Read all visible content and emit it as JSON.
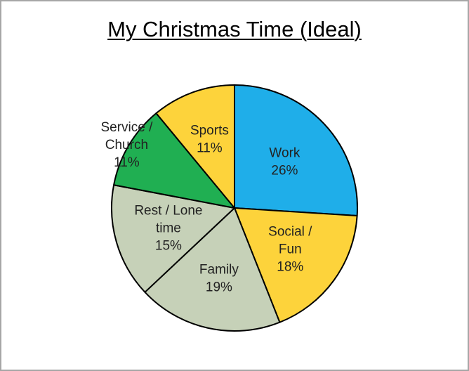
{
  "chart_data": {
    "type": "pie",
    "title": "My Christmas Time (Ideal)",
    "categories": [
      "Work",
      "Social / Fun",
      "Family",
      "Rest / Lone time",
      "Service / Church",
      "Sports"
    ],
    "values": [
      26,
      18,
      19,
      15,
      11,
      11
    ],
    "percent_labels": [
      "26%",
      "18%",
      "19%",
      "15%",
      "11%",
      "11%"
    ],
    "label_lines": [
      [
        "Work",
        "26%"
      ],
      [
        "Social /",
        "Fun",
        "18%"
      ],
      [
        "Family",
        "19%"
      ],
      [
        "Rest / Lone",
        "time",
        "15%"
      ],
      [
        "Service /",
        "Church",
        "11%"
      ],
      [
        "Sports",
        "11%"
      ]
    ],
    "colors": [
      "#1FAEE9",
      "#FDD33B",
      "#C6D1B8",
      "#C6D1B8",
      "#20AF52",
      "#FDD33B"
    ],
    "start_angle_deg": 0,
    "direction": "clockwise",
    "outline_color": "#000000"
  }
}
